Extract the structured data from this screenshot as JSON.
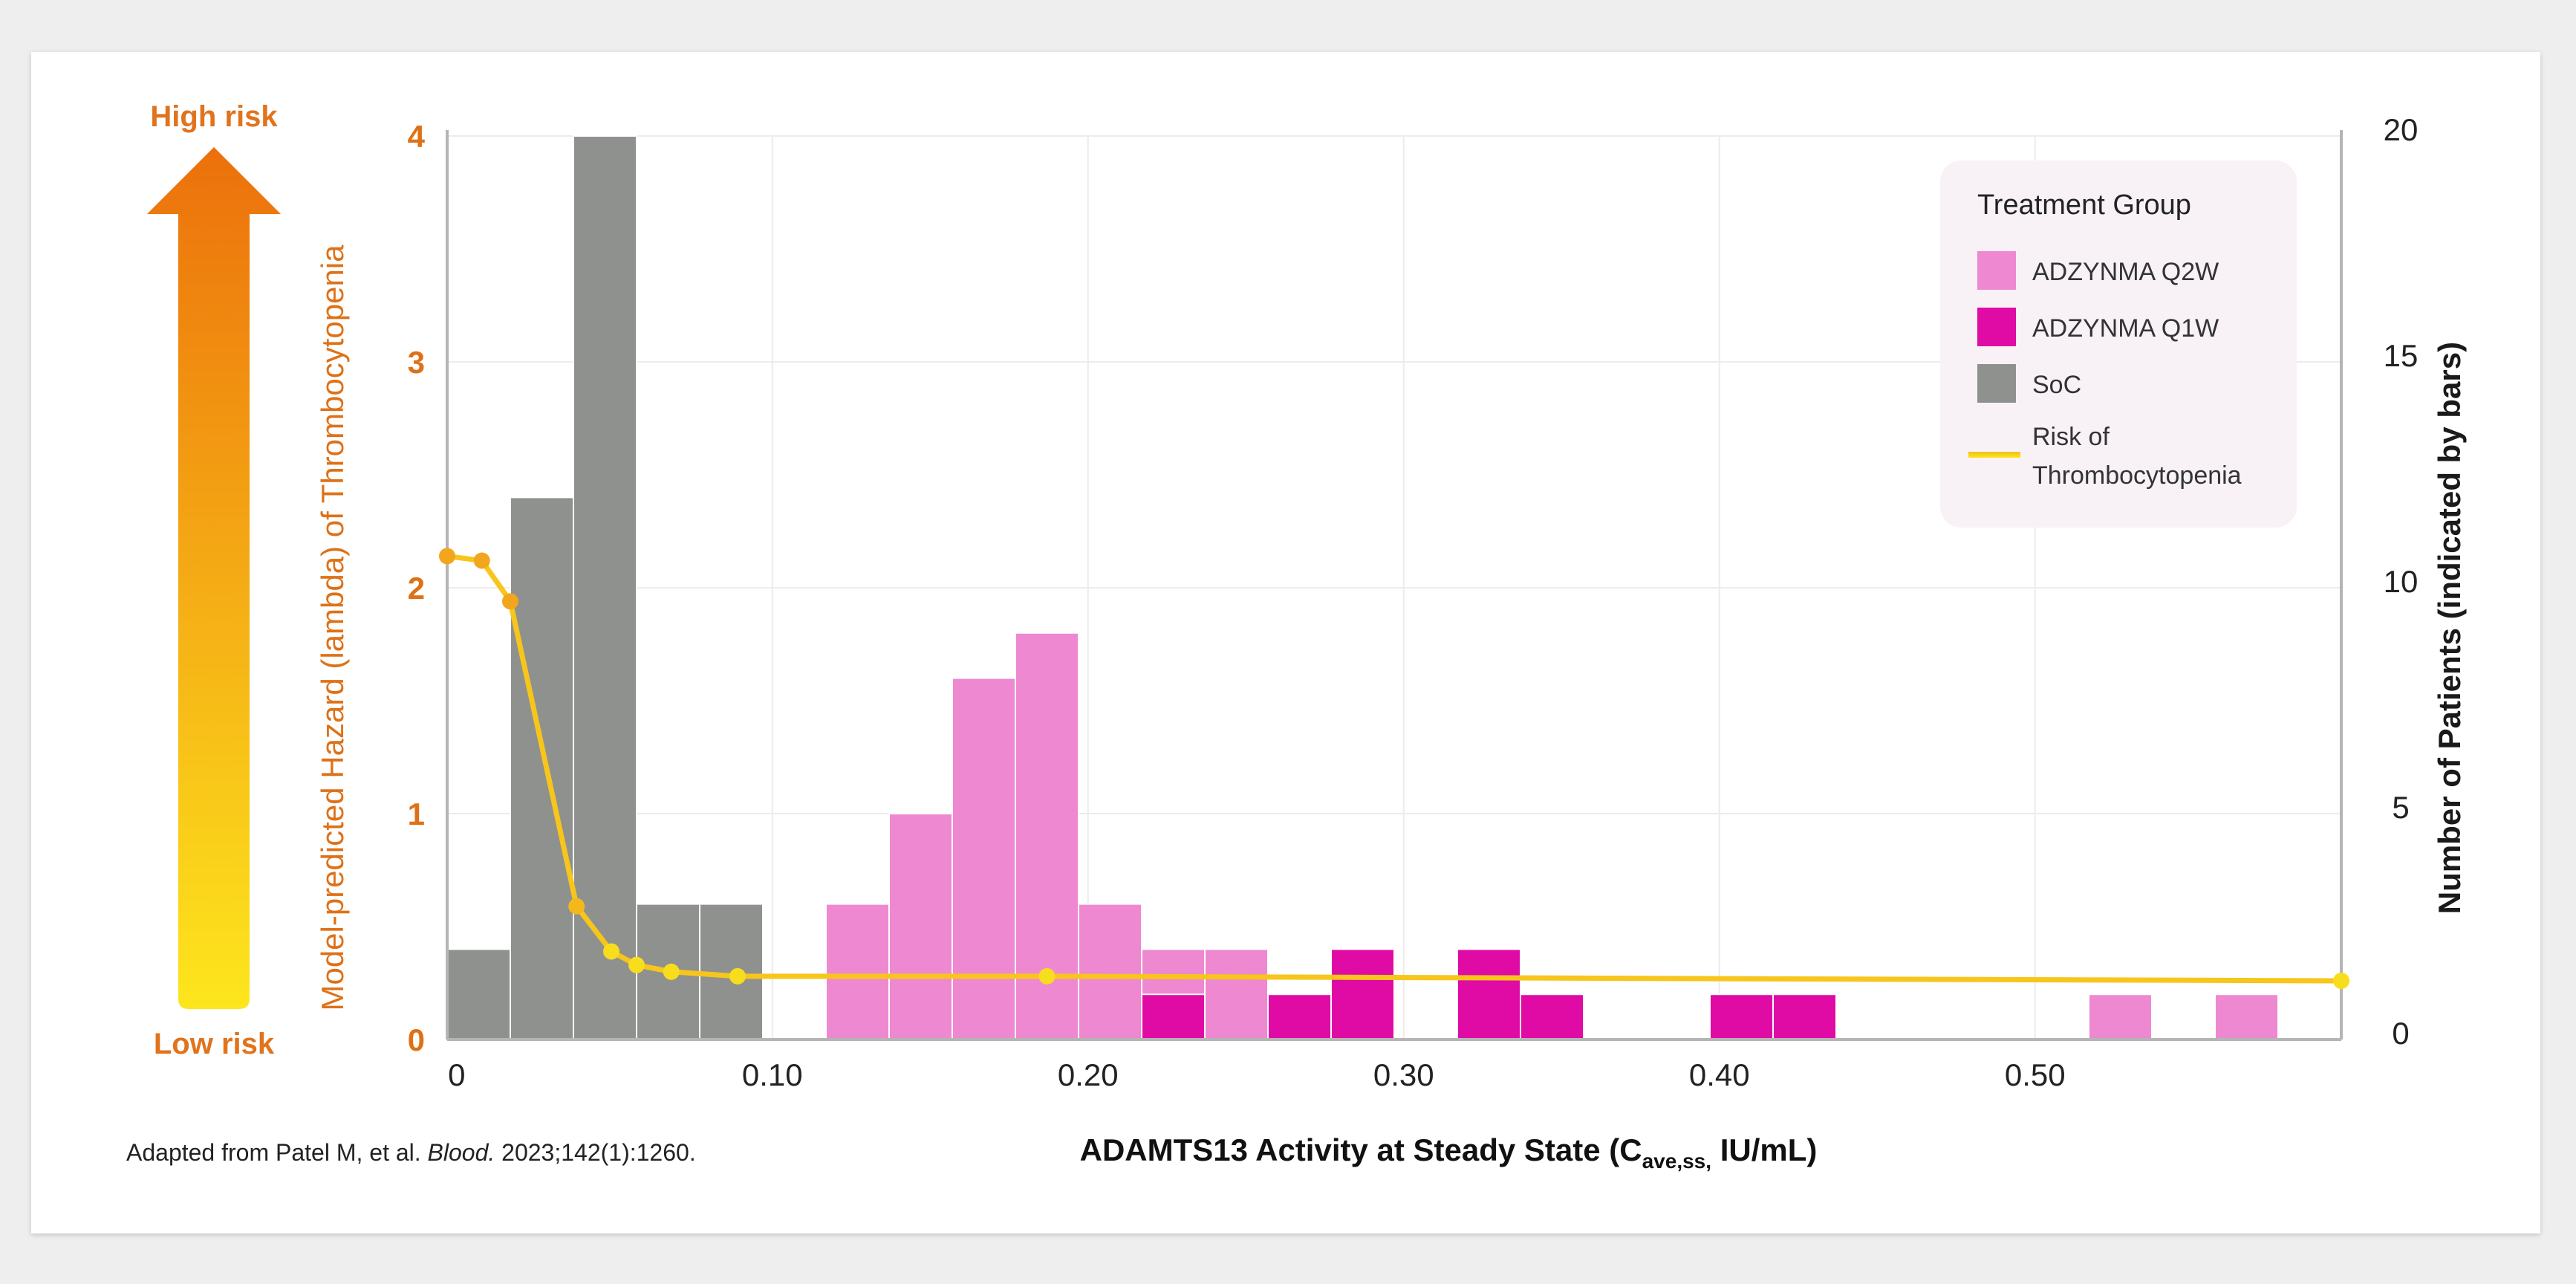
{
  "risk_scale": {
    "high_label": "High risk",
    "low_label": "Low risk",
    "gradient_top": "#ec700c",
    "gradient_bottom": "#fde61d"
  },
  "legend": {
    "title": "Treatment Group",
    "items": [
      {
        "name": "ADZYNMA Q2W",
        "color": "#ee88d1",
        "kind": "box"
      },
      {
        "name": "ADZYNMA Q1W",
        "color": "#e00aa5",
        "kind": "box"
      },
      {
        "name": "SoC",
        "color": "#8f918e",
        "kind": "box"
      },
      {
        "name_line1": "Risk of",
        "name_line2": "Thrombocytopenia",
        "color": "#f2bd1e",
        "kind": "line"
      }
    ]
  },
  "footnote": {
    "prefix": "Adapted from Patel M, et al. ",
    "journal": "Blood.",
    "suffix": " 2023;142(1):1260."
  },
  "chart_data": {
    "type": "bar+line",
    "xlabel": {
      "main": "ADAMTS13 Activity at Steady State (C",
      "subscript": "ave,ss,",
      "tail": " IU/mL)"
    },
    "ylabel_left": "Model-predicted Hazard (lambda) of Thrombocytopenia",
    "ylabel_right": "Number of Patients (indicated by bars)",
    "xlim": [
      -0.003,
      0.597
    ],
    "ylim_left": [
      0,
      4
    ],
    "ylim_right": [
      0,
      20
    ],
    "x_ticks": [
      {
        "value": 0,
        "label": "0"
      },
      {
        "value": 0.1,
        "label": "0.10"
      },
      {
        "value": 0.2,
        "label": "0.20"
      },
      {
        "value": 0.3,
        "label": "0.30"
      },
      {
        "value": 0.4,
        "label": "0.40"
      },
      {
        "value": 0.5,
        "label": "0.50"
      }
    ],
    "y_left_ticks": [
      {
        "value": 0,
        "label": "0"
      },
      {
        "value": 1,
        "label": "1"
      },
      {
        "value": 2,
        "label": "2"
      },
      {
        "value": 3,
        "label": "3"
      },
      {
        "value": 4,
        "label": "4"
      }
    ],
    "y_right_ticks": [
      {
        "value": 0,
        "label": "0"
      },
      {
        "value": 5,
        "label": "5"
      },
      {
        "value": 10,
        "label": "10"
      },
      {
        "value": 15,
        "label": "15"
      },
      {
        "value": 20,
        "label": "20"
      }
    ],
    "bin_width": 0.02,
    "series": [
      {
        "name": "SoC",
        "color": "#8f918e",
        "bins": [
          {
            "start": -0.003,
            "count": 2
          },
          {
            "start": 0.017,
            "count": 12
          },
          {
            "start": 0.037,
            "count": 20
          },
          {
            "start": 0.057,
            "count": 3
          },
          {
            "start": 0.077,
            "count": 3
          }
        ]
      },
      {
        "name": "ADZYNMA Q2W",
        "color": "#ee88d1",
        "bins": [
          {
            "start": 0.117,
            "count": 3
          },
          {
            "start": 0.137,
            "count": 5
          },
          {
            "start": 0.157,
            "count": 8
          },
          {
            "start": 0.177,
            "count": 9
          },
          {
            "start": 0.197,
            "count": 3
          },
          {
            "start": 0.217,
            "count": 2
          },
          {
            "start": 0.237,
            "count": 2
          },
          {
            "start": 0.517,
            "count": 1
          },
          {
            "start": 0.557,
            "count": 1
          }
        ]
      },
      {
        "name": "ADZYNMA Q1W",
        "color": "#e00aa5",
        "bins": [
          {
            "start": 0.217,
            "count": 1
          },
          {
            "start": 0.257,
            "count": 1
          },
          {
            "start": 0.277,
            "count": 2
          },
          {
            "start": 0.317,
            "count": 2
          },
          {
            "start": 0.337,
            "count": 1
          },
          {
            "start": 0.397,
            "count": 1
          },
          {
            "start": 0.417,
            "count": 1
          }
        ]
      }
    ],
    "risk_line": {
      "name": "Risk of Thrombocytopenia",
      "points": [
        {
          "x": -0.003,
          "y": 2.14
        },
        {
          "x": 0.008,
          "y": 2.12
        },
        {
          "x": 0.017,
          "y": 1.94
        },
        {
          "x": 0.038,
          "y": 0.59
        },
        {
          "x": 0.049,
          "y": 0.39
        },
        {
          "x": 0.057,
          "y": 0.33
        },
        {
          "x": 0.068,
          "y": 0.3
        },
        {
          "x": 0.089,
          "y": 0.28
        },
        {
          "x": 0.187,
          "y": 0.28
        },
        {
          "x": 0.597,
          "y": 0.26
        }
      ]
    }
  }
}
